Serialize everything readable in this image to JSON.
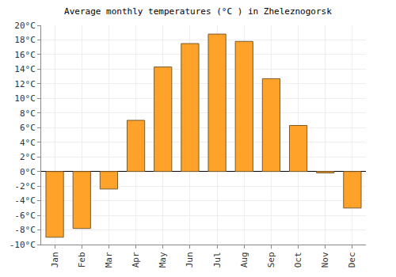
{
  "chart_data": {
    "type": "bar",
    "title": "Average monthly temperatures (°C ) in Zheleznogorsk",
    "categories": [
      "Jan",
      "Feb",
      "Mar",
      "Apr",
      "May",
      "Jun",
      "Jul",
      "Aug",
      "Sep",
      "Oct",
      "Nov",
      "Dec"
    ],
    "values": [
      -9,
      -7.8,
      -2.4,
      7,
      14.3,
      17.5,
      18.8,
      17.8,
      12.7,
      6.3,
      -0.2,
      -5
    ],
    "color": "#ffa229",
    "ylim": [
      -10,
      20
    ],
    "yticks": [
      {
        "value": -10,
        "label": "-10°C"
      },
      {
        "value": -8,
        "label": "-8°C"
      },
      {
        "value": -6,
        "label": "-6°C"
      },
      {
        "value": -4,
        "label": "-4°C"
      },
      {
        "value": -2,
        "label": "-2°C"
      },
      {
        "value": 0,
        "label": "0°C"
      },
      {
        "value": 2,
        "label": "2°C"
      },
      {
        "value": 4,
        "label": "4°C"
      },
      {
        "value": 6,
        "label": "6°C"
      },
      {
        "value": 8,
        "label": "8°C"
      },
      {
        "value": 10,
        "label": "10°C"
      },
      {
        "value": 12,
        "label": "12°C"
      },
      {
        "value": 14,
        "label": "14°C"
      },
      {
        "value": 16,
        "label": "16°C"
      },
      {
        "value": 18,
        "label": "18°C"
      },
      {
        "value": 20,
        "label": "20°C"
      }
    ],
    "grid": true
  }
}
